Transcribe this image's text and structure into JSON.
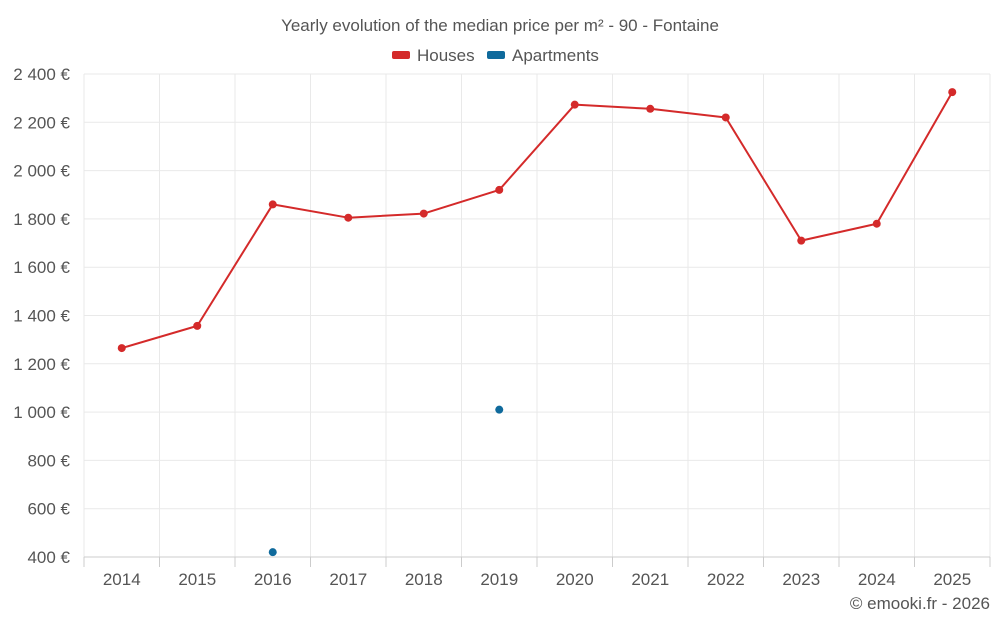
{
  "chart_data": {
    "type": "line",
    "title": "Yearly evolution of the median price per m² - 90 - Fontaine",
    "categories": [
      "2014",
      "2015",
      "2016",
      "2017",
      "2018",
      "2019",
      "2020",
      "2021",
      "2022",
      "2023",
      "2024",
      "2025"
    ],
    "series": [
      {
        "name": "Houses",
        "color": "#d42a2a",
        "values": [
          1265,
          1357,
          1860,
          1805,
          1822,
          1920,
          2273,
          2256,
          2220,
          1710,
          1780,
          2325
        ]
      },
      {
        "name": "Apartments",
        "color": "#0f6a9c",
        "values": [
          null,
          null,
          420,
          null,
          null,
          1010,
          null,
          null,
          null,
          null,
          null,
          null
        ]
      }
    ],
    "ylim": [
      400,
      2400
    ],
    "yticks": [
      400,
      600,
      800,
      1000,
      1200,
      1400,
      1600,
      1800,
      2000,
      2200,
      2400
    ],
    "ytick_labels": [
      "400 €",
      "600 €",
      "800 €",
      "1 000 €",
      "1 200 €",
      "1 400 €",
      "1 600 €",
      "1 800 €",
      "2 000 €",
      "2 200 €",
      "2 400 €"
    ],
    "xlabel": "",
    "ylabel": "",
    "grid": true,
    "legend_position": "top-center"
  },
  "credit": "© emooki.fr - 2026"
}
